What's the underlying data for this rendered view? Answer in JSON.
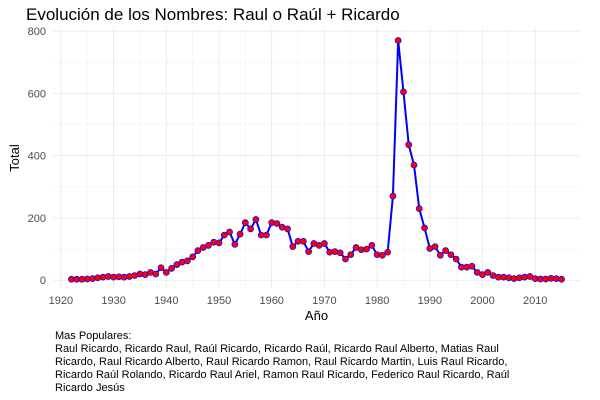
{
  "chart_data": {
    "type": "line",
    "title": "Evolución de los Nombres:  Raul o Raúl + Ricardo",
    "xlabel": "Año",
    "ylabel": "Total",
    "xlim": [
      1918.5,
      2018.5
    ],
    "ylim": [
      -25,
      810
    ],
    "x_ticks": [
      1920,
      1930,
      1940,
      1950,
      1960,
      1970,
      1980,
      1990,
      2000,
      2010
    ],
    "y_ticks": [
      0,
      200,
      400,
      600,
      800
    ],
    "grid": true,
    "line_color": "#0000ff",
    "point_color": "#ff0000",
    "x": [
      1922,
      1923,
      1924,
      1925,
      1926,
      1927,
      1928,
      1929,
      1930,
      1931,
      1932,
      1933,
      1934,
      1935,
      1936,
      1937,
      1938,
      1939,
      1940,
      1941,
      1942,
      1943,
      1944,
      1945,
      1946,
      1947,
      1948,
      1949,
      1950,
      1951,
      1952,
      1953,
      1954,
      1955,
      1956,
      1957,
      1958,
      1959,
      1960,
      1961,
      1962,
      1963,
      1964,
      1965,
      1966,
      1967,
      1968,
      1969,
      1970,
      1971,
      1972,
      1973,
      1974,
      1975,
      1976,
      1977,
      1978,
      1979,
      1980,
      1981,
      1982,
      1983,
      1984,
      1985,
      1986,
      1987,
      1988,
      1989,
      1990,
      1991,
      1992,
      1993,
      1994,
      1995,
      1996,
      1997,
      1998,
      1999,
      2000,
      2001,
      2002,
      2003,
      2004,
      2005,
      2006,
      2007,
      2008,
      2009,
      2010,
      2011,
      2012,
      2013,
      2014,
      2015
    ],
    "y": [
      3,
      3,
      3,
      4,
      5,
      8,
      10,
      12,
      10,
      11,
      10,
      12,
      15,
      20,
      18,
      25,
      20,
      40,
      25,
      38,
      50,
      58,
      62,
      75,
      95,
      105,
      112,
      122,
      120,
      145,
      155,
      115,
      148,
      185,
      165,
      195,
      145,
      145,
      185,
      182,
      170,
      165,
      108,
      125,
      125,
      92,
      118,
      112,
      118,
      90,
      92,
      88,
      68,
      82,
      105,
      98,
      100,
      112,
      82,
      80,
      90,
      270,
      770,
      605,
      435,
      370,
      230,
      168,
      102,
      108,
      80,
      95,
      82,
      68,
      42,
      42,
      45,
      25,
      18,
      25,
      15,
      10,
      10,
      8,
      5,
      8,
      10,
      12,
      5,
      4,
      4,
      6,
      5,
      3
    ]
  },
  "caption": {
    "title": "Mas Populares:",
    "text": "Raul Ricardo, Ricardo Raul, Raúl Ricardo, Ricardo Raúl, Ricardo Raul Alberto, Matias Raul Ricardo, Raul Ricardo Alberto, Raul Ricardo Ramon, Raul Ricardo Martin, Luis Raul Ricardo, Ricardo Raúl Rolando, Ricardo Raul Ariel, Ramon Raul Ricardo, Federico Raul Ricardo, Raúl Ricardo Jesús"
  }
}
